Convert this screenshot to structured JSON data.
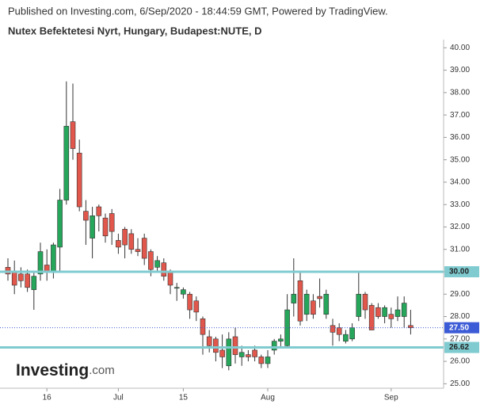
{
  "chart_data": {
    "type": "candlestick",
    "title": "Nutex Befektetesi Nyrt, Hungary, Budapest:NUTE, D",
    "subtitle": "Published on Investing.com, 6/Sep/2020 - 18:44:59 GMT, Powered by TradingView.",
    "logo": {
      "brand": "Investing",
      "suffix": ".com"
    },
    "categories": [
      null,
      null,
      null,
      null,
      null,
      null,
      "16",
      null,
      null,
      null,
      null,
      null,
      null,
      null,
      null,
      null,
      null,
      "Jul",
      null,
      null,
      null,
      null,
      null,
      null,
      null,
      null,
      null,
      "15",
      null,
      null,
      null,
      null,
      null,
      null,
      null,
      null,
      null,
      null,
      null,
      null,
      "Aug",
      null,
      null,
      null,
      null,
      null,
      null,
      null,
      null,
      null,
      null,
      null,
      null,
      null,
      null,
      null,
      null,
      null,
      null,
      "Sep",
      null,
      null,
      null
    ],
    "open": [
      30.2,
      30.0,
      29.9,
      29.9,
      29.2,
      29.9,
      30.3,
      30.0,
      31.1,
      33.2,
      36.7,
      35.3,
      32.7,
      31.5,
      32.9,
      32.4,
      32.6,
      31.4,
      31.9,
      31.7,
      31.0,
      31.5,
      30.9,
      30.2,
      30.4,
      30.0,
      29.3,
      29.0,
      29.0,
      28.7,
      27.9,
      27.1,
      27.0,
      26.5,
      25.8,
      27.1,
      26.2,
      26.3,
      26.5,
      26.2,
      25.9,
      26.5,
      26.9,
      26.7,
      28.6,
      29.6,
      28.1,
      28.7,
      28.9,
      28.1,
      27.6,
      27.5,
      26.9,
      27.0,
      28.0,
      29.0,
      28.5,
      28.4,
      28.0,
      28.1,
      28.0,
      28.0,
      27.6
    ],
    "high": [
      30.6,
      30.5,
      30.2,
      30.1,
      30.0,
      31.3,
      31.0,
      31.3,
      33.7,
      38.5,
      38.4,
      35.9,
      33.2,
      32.9,
      33.0,
      32.6,
      32.8,
      31.7,
      32.0,
      31.9,
      31.5,
      31.7,
      31.0,
      30.7,
      30.6,
      30.1,
      29.5,
      29.3,
      29.1,
      28.9,
      28.0,
      27.4,
      27.1,
      27.2,
      27.3,
      27.5,
      26.7,
      26.5,
      26.7,
      26.3,
      26.5,
      27.0,
      27.2,
      29.0,
      30.6,
      30.0,
      29.2,
      29.0,
      29.7,
      29.2,
      27.9,
      27.7,
      27.4,
      27.7,
      30.0,
      29.1,
      28.6,
      28.6,
      28.5,
      28.4,
      28.9,
      28.9,
      28.3
    ],
    "low": [
      29.6,
      29.0,
      29.3,
      29.1,
      28.3,
      29.6,
      29.6,
      29.7,
      30.0,
      33.0,
      35.0,
      32.7,
      31.2,
      30.6,
      31.8,
      31.3,
      31.2,
      30.8,
      30.6,
      30.8,
      30.7,
      30.3,
      29.8,
      30.0,
      29.6,
      29.0,
      28.7,
      28.8,
      27.9,
      27.8,
      26.3,
      26.4,
      26.0,
      25.7,
      25.6,
      25.9,
      25.8,
      26.0,
      26.0,
      25.7,
      25.7,
      26.3,
      26.6,
      26.6,
      28.0,
      27.6,
      27.8,
      27.9,
      28.4,
      27.9,
      26.7,
      26.9,
      26.8,
      26.9,
      27.8,
      27.9,
      27.4,
      27.9,
      27.7,
      27.5,
      27.8,
      27.5,
      27.2
    ],
    "close": [
      29.9,
      29.4,
      29.6,
      29.3,
      29.8,
      30.9,
      30.0,
      31.2,
      33.2,
      36.5,
      35.5,
      32.9,
      32.3,
      32.5,
      32.5,
      31.6,
      31.8,
      31.1,
      31.2,
      31.0,
      30.9,
      30.6,
      30.1,
      30.5,
      29.8,
      29.4,
      29.3,
      29.2,
      28.3,
      28.2,
      27.2,
      26.7,
      26.4,
      26.2,
      27.0,
      26.3,
      26.4,
      26.2,
      26.2,
      25.9,
      26.2,
      26.9,
      27.0,
      28.3,
      29.0,
      27.8,
      29.0,
      28.1,
      28.8,
      29.0,
      27.3,
      27.2,
      27.2,
      27.5,
      29.0,
      28.3,
      27.4,
      28.0,
      28.4,
      27.9,
      28.3,
      28.6,
      27.5
    ],
    "up_color": "#26a65b",
    "down_color": "#e2574c",
    "ylim": [
      24.8,
      40.4
    ],
    "yticks": [
      {
        "value": 25,
        "label": "25.00"
      },
      {
        "value": 26,
        "label": "26.00"
      },
      {
        "value": 27,
        "label": "27.00"
      },
      {
        "value": 28,
        "label": "28.00"
      },
      {
        "value": 29,
        "label": "29.00"
      },
      {
        "value": 30,
        "label": "30.00"
      },
      {
        "value": 31,
        "label": "31.00"
      },
      {
        "value": 32,
        "label": "32.00"
      },
      {
        "value": 33,
        "label": "33.00"
      },
      {
        "value": 34,
        "label": "34.00"
      },
      {
        "value": 35,
        "label": "35.00"
      },
      {
        "value": 36,
        "label": "36.00"
      },
      {
        "value": 37,
        "label": "37.00"
      },
      {
        "value": 38,
        "label": "38.00"
      },
      {
        "value": 39,
        "label": "39.00"
      },
      {
        "value": 40,
        "label": "40.00"
      }
    ],
    "levels": [
      {
        "value": 30,
        "label": "30.00"
      },
      {
        "value": 26.62,
        "label": "26.62"
      }
    ],
    "level_color": "#7fcbd0",
    "last_price": {
      "value": 27.5,
      "label": "27.50"
    },
    "last_color": "#3c5bd6"
  }
}
